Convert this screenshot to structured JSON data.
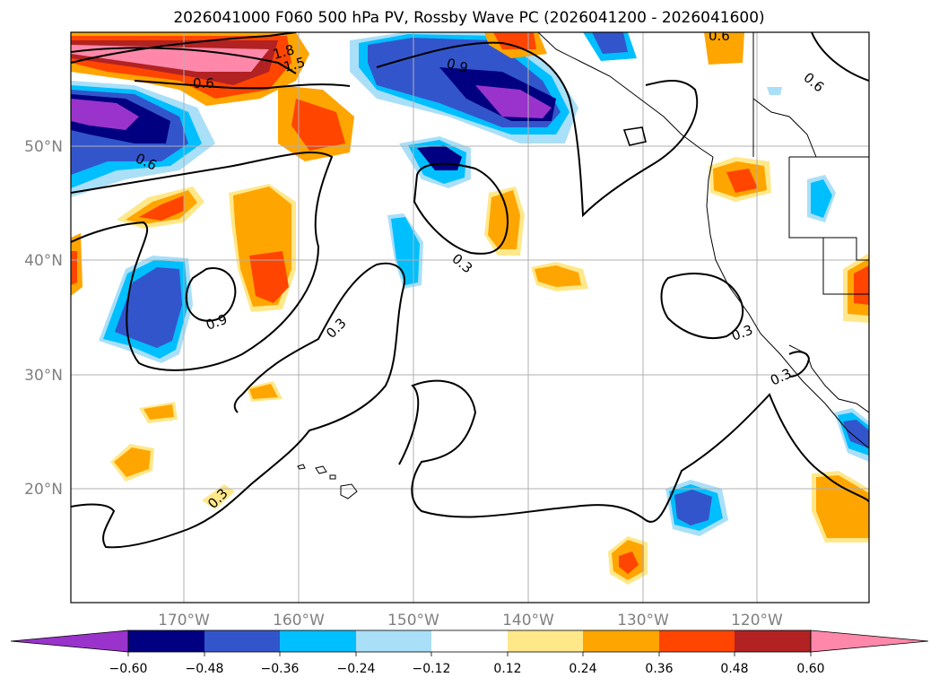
{
  "title": "2026041000 F060 500 hPa PV, Rossby Wave PC (2026041200 - 2026041600)",
  "lat_ticks": [
    "50°N",
    "40°N",
    "30°N",
    "20°N"
  ],
  "lon_ticks": [
    "170°W",
    "160°W",
    "150°W",
    "140°W",
    "130°W",
    "120°W"
  ],
  "contour_labels": [
    "1.8",
    "1.5",
    "0.6",
    "0.6",
    "0.9",
    "0.6",
    "0.6",
    "0.3",
    "0.9",
    "0.3",
    "0.3",
    "0.3",
    "0.3"
  ],
  "colorbar": {
    "ticks": [
      "−0.60",
      "−0.48",
      "−0.36",
      "−0.24",
      "−0.12",
      "0.12",
      "0.24",
      "0.36",
      "0.48",
      "0.60"
    ],
    "colors": [
      "#9933cc",
      "#000080",
      "#3355cc",
      "#00bfff",
      "#aadff8",
      "#ffffff",
      "#ffe88a",
      "#ffa500",
      "#ff4500",
      "#b22222",
      "#ff88aa"
    ]
  }
}
